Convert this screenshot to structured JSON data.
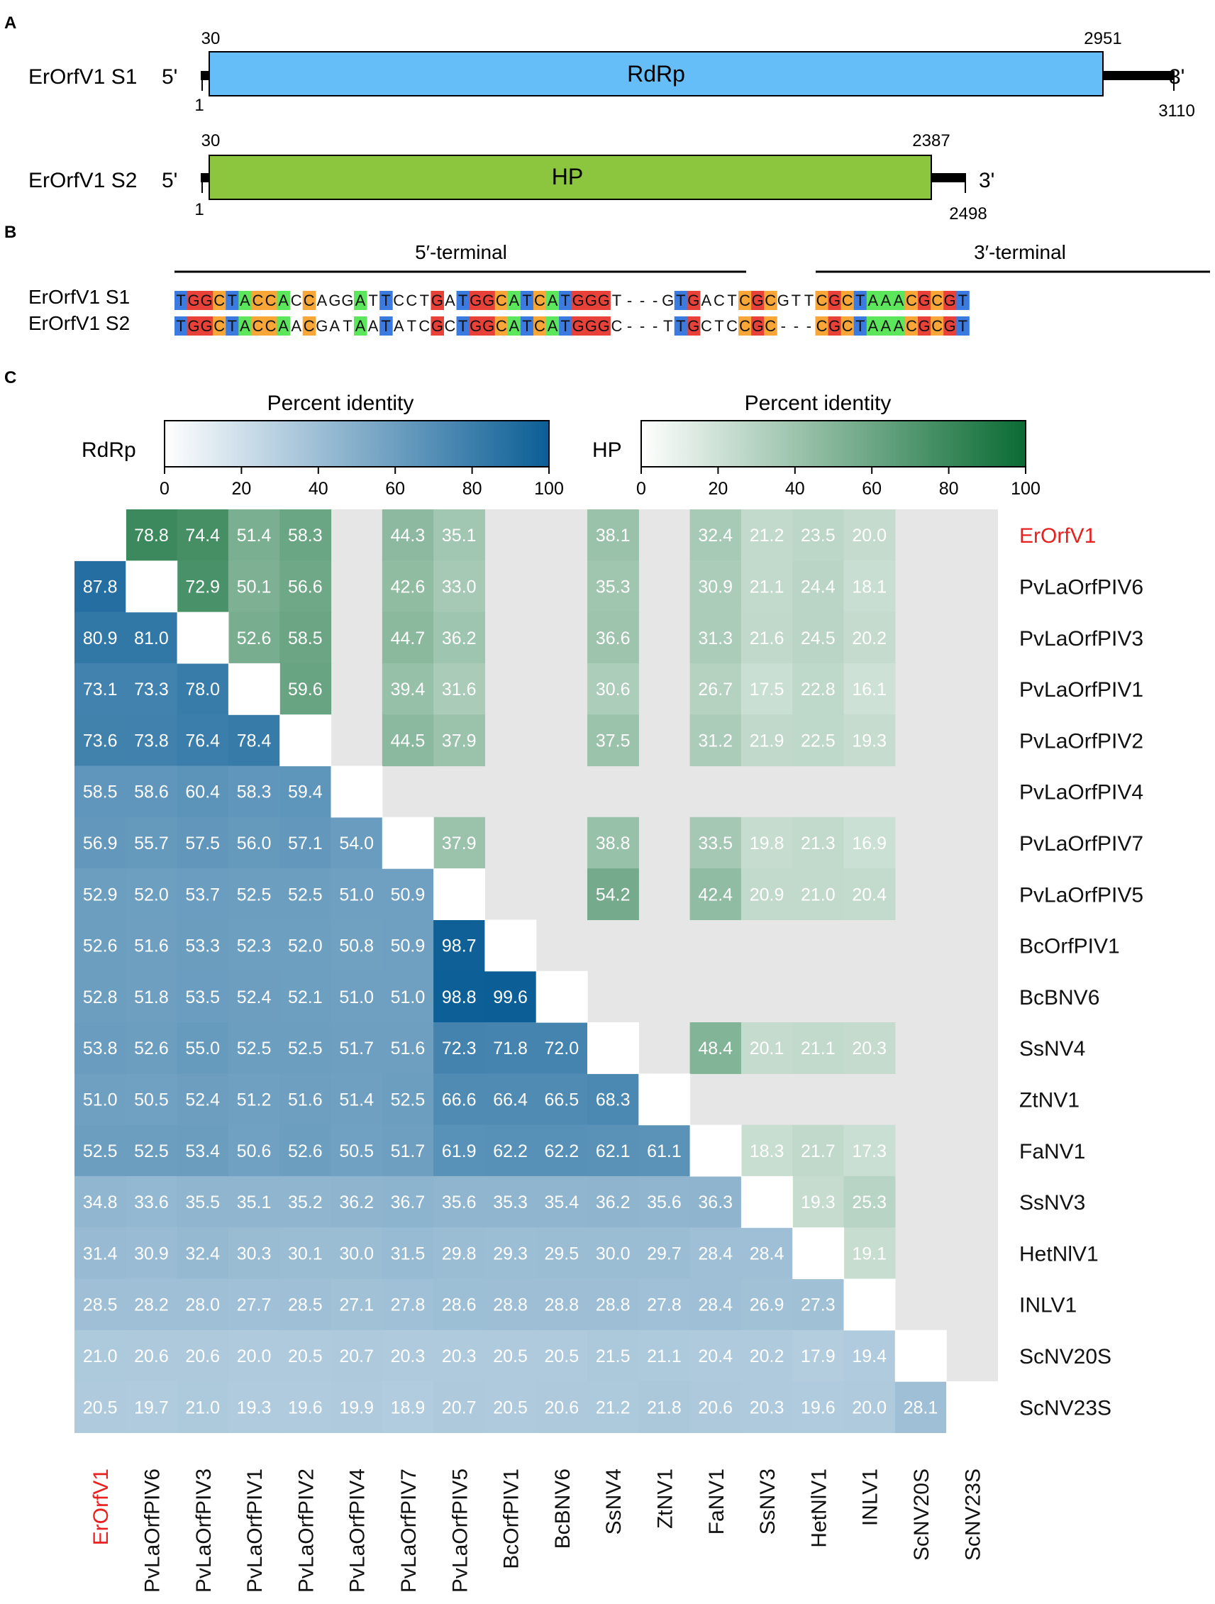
{
  "panels": {
    "a": "A",
    "b": "B",
    "c": "C"
  },
  "panelA": {
    "s1": {
      "label": "ErOrfV1 S1",
      "five": "5'",
      "three": "3'",
      "orf": "RdRp",
      "orf_color": "#66BEF8",
      "start": "1",
      "orf_start": "30",
      "orf_end": "2951",
      "end": "3110"
    },
    "s2": {
      "label": "ErOrfV1 S2",
      "five": "5'",
      "three": "3'",
      "orf": "HP",
      "orf_color": "#8CC63F",
      "start": "1",
      "orf_start": "30",
      "orf_end": "2387",
      "end": "2498"
    }
  },
  "panelB": {
    "five_terminal": "5′-terminal",
    "three_terminal": "3′-terminal",
    "labels": [
      "ErOrfV1 S1",
      "ErOrfV1 S2"
    ],
    "seq1": "TGGCTACCACCAGGATTCCTGATGGCATCATGGGT---GTGACTCGCGTTCGCTAAACGCGT",
    "seq2": "TGGCTACCAACGATAATATCGCTGGCATCATGGGC---TTGCTCCGC---CGCTAAACGCGT",
    "base_colors": {
      "A": "#5CE65C",
      "C": "#F7A637",
      "G": "#E84139",
      "T": "#3B7BE0"
    }
  },
  "panelC": {
    "legend_title": "Percent identity",
    "rdrp_label": "RdRp",
    "hp_label": "HP",
    "ticks": [
      "0",
      "20",
      "40",
      "60",
      "80",
      "100"
    ],
    "rdrp_color_high": "#0B5E96",
    "hp_color_high": "#0A6B33",
    "highlight_color": "#E8201F",
    "viruses": [
      "ErOrfV1",
      "PvLaOrfPIV6",
      "PvLaOrfPIV3",
      "PvLaOrfPIV1",
      "PvLaOrfPIV2",
      "PvLaOrfPIV4",
      "PvLaOrfPIV7",
      "PvLaOrfPIV5",
      "BcOrfPIV1",
      "BcBNV6",
      "SsNV4",
      "ZtNV1",
      "FaNV1",
      "SsNV3",
      "HetNIV1",
      "INLV1",
      "ScNV20S",
      "ScNV23S"
    ],
    "row_labels": [
      "ErOrfV1",
      "PvLaOrfPIV6",
      "PvLaOrfPIV3",
      "PvLaOrfPIV1",
      "PvLaOrfPIV2",
      "PvLaOrfPIV4",
      "PvLaOrfPIV7",
      "PvLaOrfPIV5",
      "BcOrfPIV1",
      "BcBNV6",
      "SsNV4",
      "ZtNV1",
      "FaNV1",
      "SsNV3",
      "HetNlV1",
      "INLV1",
      "ScNV20S",
      "ScNV23S"
    ],
    "col_labels": [
      "ErOrfV1",
      "PvLaOrfPIV6",
      "PvLaOrfPIV3",
      "PvLaOrfPIV1",
      "PvLaOrfPIV2",
      "PvLaOrfPIV4",
      "PvLaOrfPIV7",
      "PvLaOrfPIV5",
      "BcOrfPIV1",
      "BcBNV6",
      "SsNV4",
      "ZtNV1",
      "FaNV1",
      "SsNV3",
      "HetNlV1",
      "INLV1",
      "ScNV20S",
      "ScNV23S"
    ]
  },
  "chart_data": {
    "type": "heatmap",
    "title": "Percent identity",
    "note": "Lower triangle: RdRp percent identity (blue). Upper triangle: HP percent identity (green); null = no value (grey).",
    "range": [
      0,
      100
    ],
    "rdrp": [
      [
        87.8
      ],
      [
        80.9,
        81.0
      ],
      [
        73.1,
        73.3,
        78.0
      ],
      [
        73.6,
        73.8,
        76.4,
        78.4
      ],
      [
        58.5,
        58.6,
        60.4,
        58.3,
        59.4
      ],
      [
        56.9,
        55.7,
        57.5,
        56.0,
        57.1,
        54.0
      ],
      [
        52.9,
        52.0,
        53.7,
        52.5,
        52.5,
        51.0,
        50.9
      ],
      [
        52.6,
        51.6,
        53.3,
        52.3,
        52.0,
        50.8,
        50.9,
        98.7
      ],
      [
        52.8,
        51.8,
        53.5,
        52.4,
        52.1,
        51.0,
        51.0,
        98.8,
        99.6
      ],
      [
        53.8,
        52.6,
        55.0,
        52.5,
        52.5,
        51.7,
        51.6,
        72.3,
        71.8,
        72.0
      ],
      [
        51.0,
        50.5,
        52.4,
        51.2,
        51.6,
        51.4,
        52.5,
        66.6,
        66.4,
        66.5,
        68.3
      ],
      [
        52.5,
        52.5,
        53.4,
        50.6,
        52.6,
        50.5,
        51.7,
        61.9,
        62.2,
        62.2,
        62.1,
        61.1
      ],
      [
        34.8,
        33.6,
        35.5,
        35.1,
        35.2,
        36.2,
        36.7,
        35.6,
        35.3,
        35.4,
        36.2,
        35.6,
        36.3
      ],
      [
        31.4,
        30.9,
        32.4,
        30.3,
        30.1,
        30.0,
        31.5,
        29.8,
        29.3,
        29.5,
        30.0,
        29.7,
        28.4,
        28.4
      ],
      [
        28.5,
        28.2,
        28.0,
        27.7,
        28.5,
        27.1,
        27.8,
        28.6,
        28.8,
        28.8,
        28.8,
        27.8,
        28.4,
        26.9,
        27.3
      ],
      [
        21.0,
        20.6,
        20.6,
        20.0,
        20.5,
        20.7,
        20.3,
        20.3,
        20.5,
        20.5,
        21.5,
        21.1,
        20.4,
        20.2,
        17.9,
        19.4
      ],
      [
        20.5,
        19.7,
        21.0,
        19.3,
        19.6,
        19.9,
        18.9,
        20.7,
        20.5,
        20.6,
        21.2,
        21.8,
        20.6,
        20.3,
        19.6,
        20.0,
        28.1
      ]
    ],
    "hp": [
      [
        78.8,
        74.4,
        51.4,
        58.3,
        null,
        44.3,
        35.1,
        null,
        null,
        38.1,
        null,
        32.4,
        21.2,
        23.5,
        20.0,
        null,
        null
      ],
      [
        72.9,
        50.1,
        56.6,
        null,
        42.6,
        33.0,
        null,
        null,
        35.3,
        null,
        30.9,
        21.1,
        24.4,
        18.1,
        null,
        null
      ],
      [
        52.6,
        58.5,
        null,
        44.7,
        36.2,
        null,
        null,
        36.6,
        null,
        31.3,
        21.6,
        24.5,
        20.2,
        null,
        null
      ],
      [
        59.6,
        null,
        39.4,
        31.6,
        null,
        null,
        30.6,
        null,
        26.7,
        17.5,
        22.8,
        16.1,
        null,
        null
      ],
      [
        null,
        44.5,
        37.9,
        null,
        null,
        37.5,
        null,
        31.2,
        21.9,
        22.5,
        19.3,
        null,
        null
      ],
      [
        null,
        null,
        null,
        null,
        null,
        null,
        null,
        null,
        null,
        null,
        null,
        null
      ],
      [
        37.9,
        null,
        null,
        38.8,
        null,
        33.5,
        19.8,
        21.3,
        16.9,
        null,
        null
      ],
      [
        null,
        null,
        54.2,
        null,
        42.4,
        20.9,
        21.0,
        20.4,
        null,
        null
      ],
      [
        null,
        null,
        null,
        null,
        null,
        null,
        null,
        null,
        null
      ],
      [
        null,
        null,
        null,
        null,
        null,
        null,
        null,
        null
      ],
      [
        null,
        48.4,
        20.1,
        21.1,
        20.3,
        null,
        null
      ],
      [
        null,
        null,
        null,
        null,
        null,
        null
      ],
      [
        18.3,
        21.7,
        17.3,
        null,
        null
      ],
      [
        19.3,
        25.3,
        null,
        null
      ],
      [
        19.1,
        null,
        null
      ],
      [
        null,
        null
      ],
      [
        null
      ]
    ]
  }
}
